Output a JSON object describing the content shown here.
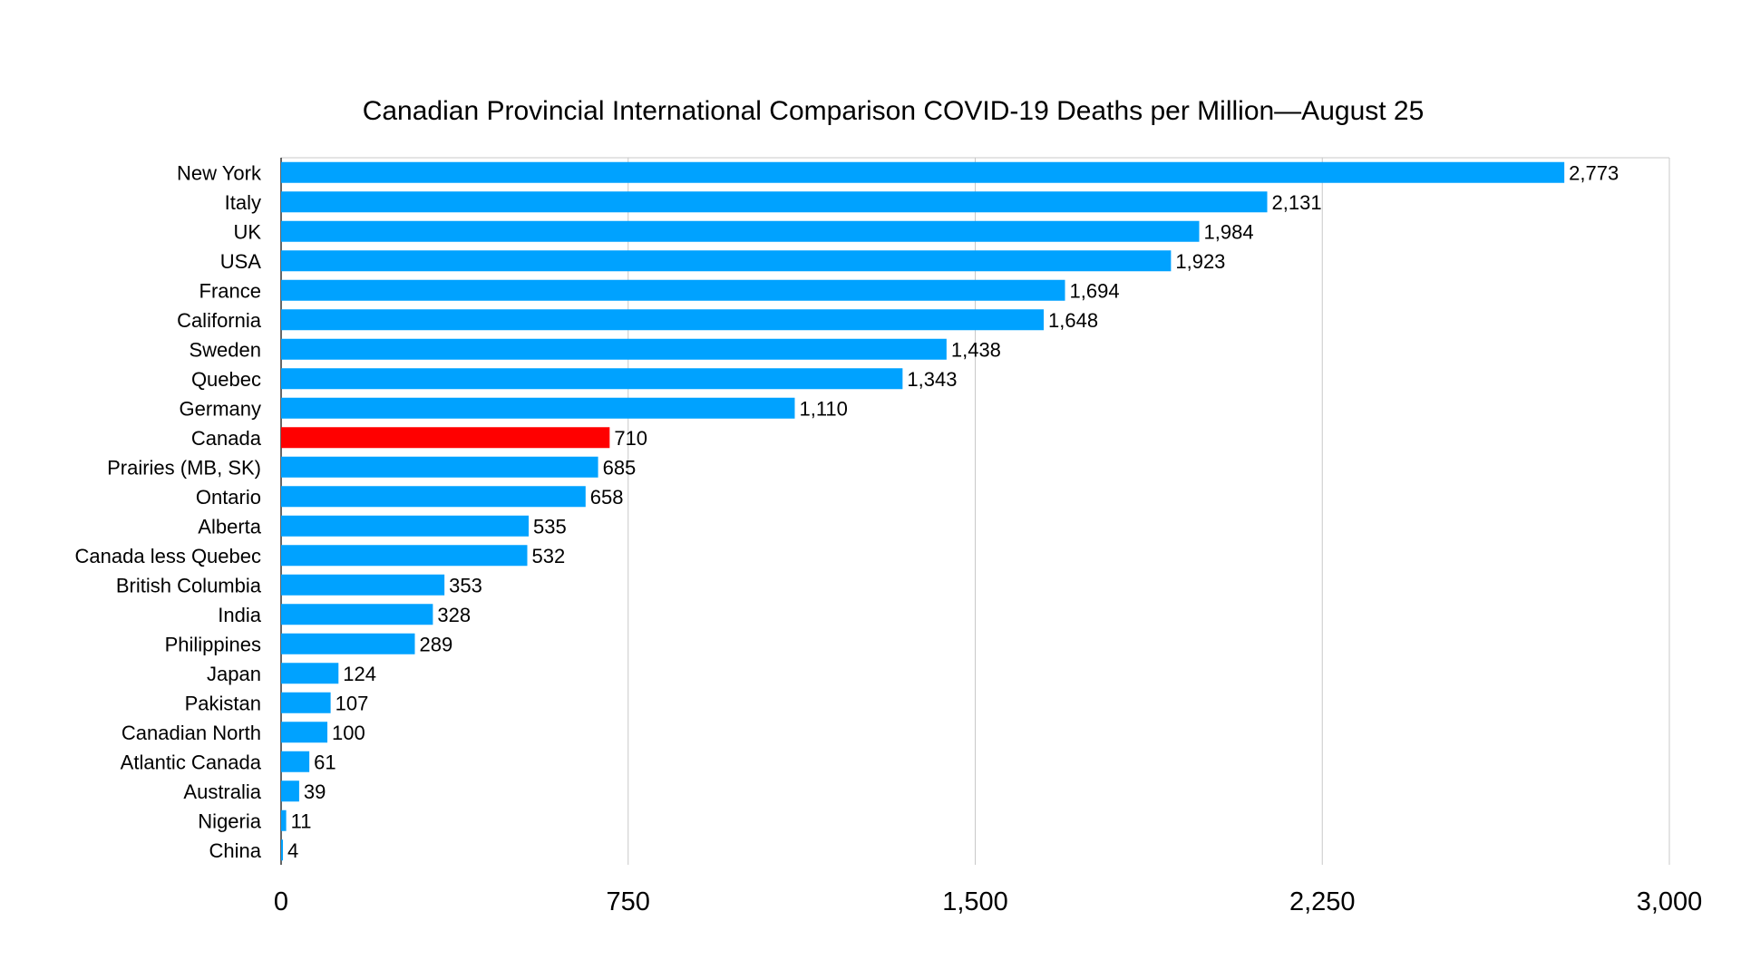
{
  "chart_data": {
    "type": "bar",
    "orientation": "horizontal",
    "title": "Canadian Provincial International Comparison COVID-19 Deaths per Million—August 25",
    "xlabel": "",
    "ylabel": "",
    "xlim": [
      0,
      3000
    ],
    "xticks": [
      0,
      750,
      1500,
      2250,
      3000
    ],
    "xtick_labels": [
      "0",
      "750",
      "1,500",
      "2,250",
      "3,000"
    ],
    "grid": true,
    "categories": [
      "New York",
      "Italy",
      "UK",
      "USA",
      "France",
      "California",
      "Sweden",
      "Quebec",
      "Germany",
      "Canada",
      "Prairies (MB, SK)",
      "Ontario",
      "Alberta",
      "Canada less Quebec",
      "British Columbia",
      "India",
      "Philippines",
      "Japan",
      "Pakistan",
      "Canadian North",
      "Atlantic Canada",
      "Australia",
      "Nigeria",
      "China"
    ],
    "values": [
      2773,
      2131,
      1984,
      1923,
      1694,
      1648,
      1438,
      1343,
      1110,
      710,
      685,
      658,
      535,
      532,
      353,
      328,
      289,
      124,
      107,
      100,
      61,
      39,
      11,
      4
    ],
    "value_labels": [
      "2,773",
      "2,131",
      "1,984",
      "1,923",
      "1,694",
      "1,648",
      "1,438",
      "1,343",
      "1,110",
      "710",
      "685",
      "658",
      "535",
      "532",
      "353",
      "328",
      "289",
      "124",
      "107",
      "100",
      "61",
      "39",
      "11",
      "4"
    ],
    "highlight": "Canada",
    "colors": {
      "bar": "#00A2FF",
      "highlight": "#FF0000",
      "grid": "#C8C8C8"
    }
  }
}
